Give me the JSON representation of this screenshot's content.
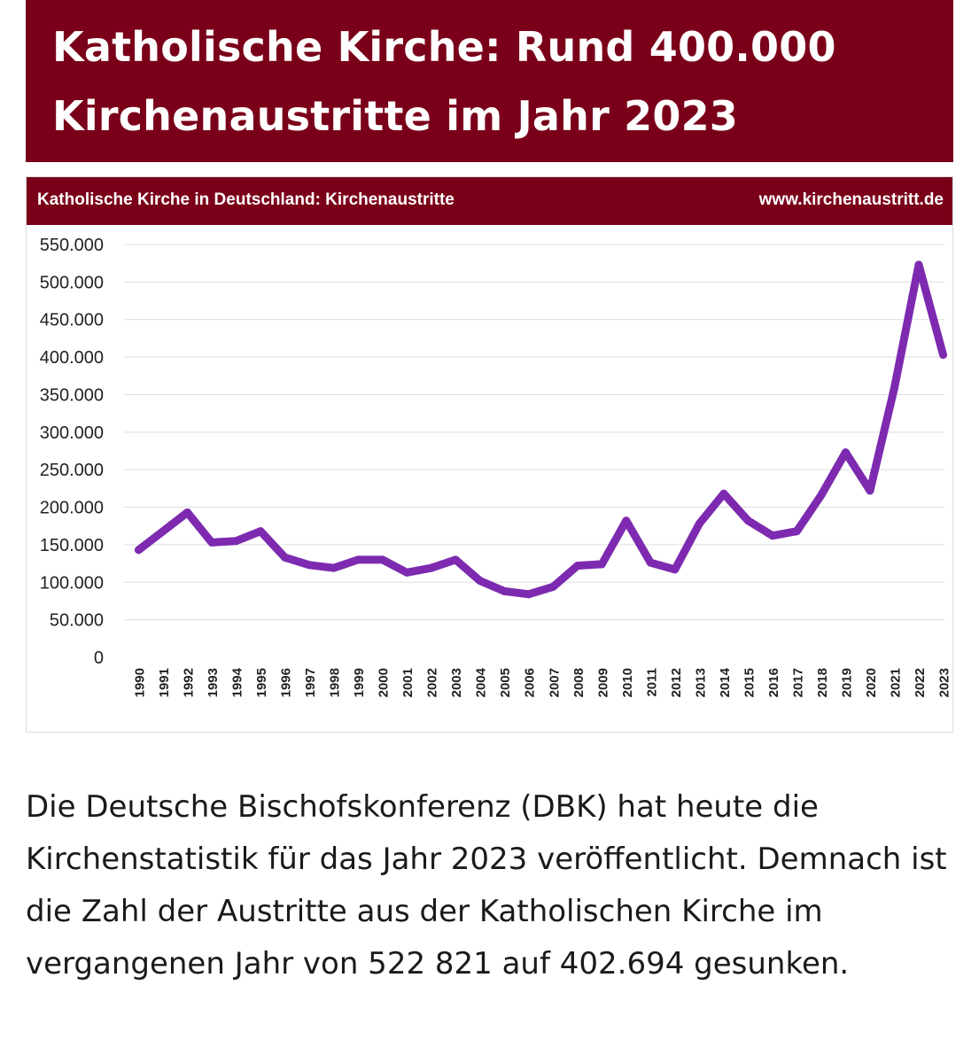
{
  "headline": {
    "line1": "Katholische Kirche: Rund 400.000",
    "line2": "Kirchenaustritte im Jahr 2023"
  },
  "chart_header": {
    "left": "Katholische Kirche in Deutschland: Kirchenaustritte",
    "right": "www.kirchenaustritt.de"
  },
  "colors": {
    "brand": "#7a0019",
    "line": "#7d2ab0",
    "grid": "#dddddd"
  },
  "chart_data": {
    "type": "line",
    "title": "Katholische Kirche in Deutschland: Kirchenaustritte",
    "xlabel": "",
    "ylabel": "",
    "ylim": [
      0,
      550000
    ],
    "y_ticks": [
      "0",
      "50.000",
      "100.000",
      "150.000",
      "200.000",
      "250.000",
      "300.000",
      "350.000",
      "400.000",
      "450.000",
      "500.000",
      "550.000"
    ],
    "grid": true,
    "legend": "none",
    "categories": [
      "1990",
      "1991",
      "1992",
      "1993",
      "1994",
      "1995",
      "1996",
      "1997",
      "1998",
      "1999",
      "2000",
      "2001",
      "2002",
      "2003",
      "2004",
      "2005",
      "2006",
      "2007",
      "2008",
      "2009",
      "2010",
      "2011",
      "2012",
      "2013",
      "2014",
      "2015",
      "2016",
      "2017",
      "2018",
      "2019",
      "2020",
      "2021",
      "2022",
      "2023"
    ],
    "series": [
      {
        "values": [
          143000,
          168000,
          193000,
          153000,
          155000,
          168000,
          133000,
          123000,
          119000,
          130000,
          130000,
          113000,
          119000,
          130000,
          102000,
          88000,
          84000,
          94000,
          122000,
          124000,
          182000,
          126000,
          117000,
          178000,
          218000,
          182000,
          162000,
          168000,
          216000,
          273000,
          222000,
          359000,
          523000,
          403000
        ]
      }
    ]
  },
  "body": {
    "paragraph": "Die Deutsche Bischofskonferenz (DBK) hat heute die Kirchenstatistik für das Jahr 2023 veröffentlicht. Demnach ist die Zahl der Austritte aus der Katholischen Kirche im vergangenen Jahr von 522 821 auf 402.694 gesunken."
  }
}
